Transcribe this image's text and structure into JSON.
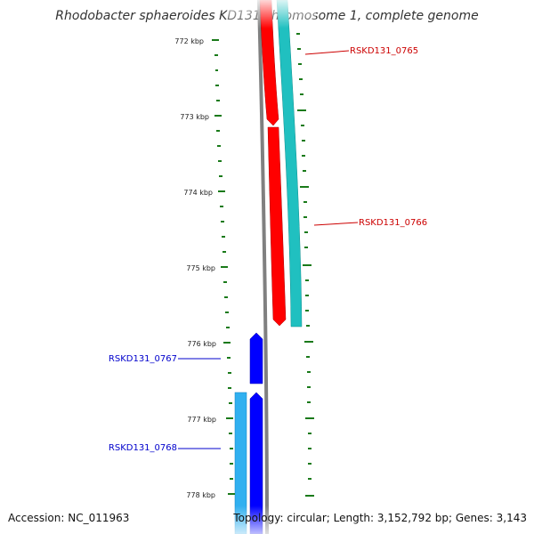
{
  "title": "Rhodobacter sphaeroides KD131 chromosome 1, complete genome",
  "accession": "Accession: NC_011963",
  "summary": "Topology: circular; Length: 3,152,792 bp; Genes: 3,143",
  "ticks": [
    {
      "label": "772 kbp"
    },
    {
      "label": "773 kbp"
    },
    {
      "label": "774 kbp"
    },
    {
      "label": "775 kbp"
    },
    {
      "label": "776 kbp"
    },
    {
      "label": "777 kbp"
    },
    {
      "label": "778 kbp"
    }
  ],
  "genes": [
    {
      "name": "RSKD131_0765",
      "color": "#cc0000"
    },
    {
      "name": "RSKD131_0766",
      "color": "#cc0000"
    },
    {
      "name": "RSKD131_0767",
      "color": "#0000cc"
    },
    {
      "name": "RSKD131_0768",
      "color": "#0000cc"
    }
  ],
  "colors": {
    "backbone": "#808080",
    "forward_cds": "#ff0000",
    "reverse_cds": "#0000ff",
    "forward_other": "#20c0c0",
    "reverse_other": "#30b0f0",
    "tick": "#1a7a1a"
  }
}
